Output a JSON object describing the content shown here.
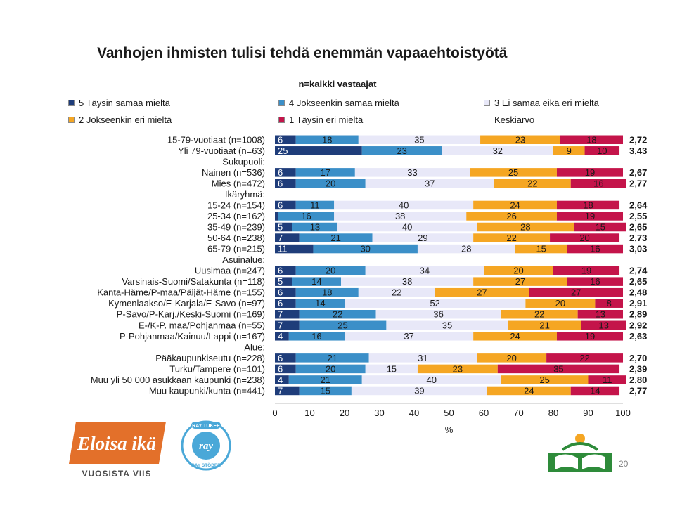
{
  "slide": {
    "title": "Vanhojen ihmisten tulisi tehdä enemmän vapaaehtoistyötä",
    "page_number": "20"
  },
  "logos": {
    "eloisa_line1": "Eloisa ikä",
    "eloisa_line2": "VUOSISTA VIIS",
    "ray_top": "RAY TUKEE",
    "ray_center": "ray",
    "ray_bottom": "RAY STÖDER"
  },
  "chart_data": {
    "type": "bar",
    "orientation": "horizontal",
    "stacked": true,
    "subtitle": "n=kaikki vastaajat",
    "xlabel": "%",
    "xlim": [
      0,
      100
    ],
    "xticks": [
      "0",
      "10",
      "20",
      "30",
      "40",
      "50",
      "60",
      "70",
      "80",
      "90",
      "100"
    ],
    "grid": false,
    "legend_position": "top",
    "mean_label": "Keskiarvo",
    "colors": {
      "s5": "#1f3d7a",
      "s4": "#3b8fc8",
      "s3": "#e8e8f8",
      "s2": "#f5a623",
      "s1": "#c4144a"
    },
    "legend": [
      {
        "key": "s5",
        "label": "5 Täysin samaa mieltä"
      },
      {
        "key": "s4",
        "label": "4 Jokseenkin samaa mieltä"
      },
      {
        "key": "s3",
        "label": "3 Ei samaa eikä eri mieltä"
      },
      {
        "key": "s2",
        "label": "2 Jokseenkin eri mieltä"
      },
      {
        "key": "s1",
        "label": "1 Täysin eri mieltä"
      }
    ],
    "rows": [
      {
        "label": "15-79-vuotiaat (n=1008)",
        "values": [
          6,
          18,
          35,
          23,
          18
        ],
        "mean": "2,72"
      },
      {
        "label": "Yli 79-vuotiaat (n=63)",
        "values": [
          25,
          23,
          32,
          9,
          10
        ],
        "mean": "3,43"
      },
      {
        "label": "Sukupuoli:",
        "heading": true
      },
      {
        "label": "Nainen (n=536)",
        "values": [
          6,
          17,
          33,
          25,
          19
        ],
        "mean": "2,67"
      },
      {
        "label": "Mies (n=472)",
        "values": [
          6,
          20,
          37,
          22,
          16
        ],
        "mean": "2,77"
      },
      {
        "label": "Ikäryhmä:",
        "heading": true
      },
      {
        "label": "15-24 (n=154)",
        "values": [
          6,
          11,
          40,
          24,
          18
        ],
        "mean": "2,64"
      },
      {
        "label": "25-34 (n=162)",
        "values": [
          1,
          16,
          38,
          26,
          19
        ],
        "mean": "2,55"
      },
      {
        "label": "35-49 (n=239)",
        "values": [
          5,
          13,
          40,
          28,
          15
        ],
        "mean": "2,65"
      },
      {
        "label": "50-64 (n=238)",
        "values": [
          7,
          21,
          29,
          22,
          20
        ],
        "mean": "2,73"
      },
      {
        "label": "65-79 (n=215)",
        "values": [
          11,
          30,
          28,
          15,
          16
        ],
        "mean": "3,03"
      },
      {
        "label": "Asuinalue:",
        "heading": true
      },
      {
        "label": "Uusimaa (n=247)",
        "values": [
          6,
          20,
          34,
          20,
          19
        ],
        "mean": "2,74"
      },
      {
        "label": "Varsinais-Suomi/Satakunta (n=118)",
        "values": [
          5,
          14,
          38,
          27,
          16
        ],
        "mean": "2,65"
      },
      {
        "label": "Kanta-Häme/P-maa/Päijät-Häme (n=155)",
        "values": [
          6,
          18,
          22,
          27,
          27
        ],
        "mean": "2,48"
      },
      {
        "label": "Kymenlaakso/E-Karjala/E-Savo (n=97)",
        "values": [
          6,
          14,
          52,
          20,
          8
        ],
        "mean": "2,91"
      },
      {
        "label": "P-Savo/P-Karj./Keski-Suomi (n=169)",
        "values": [
          7,
          22,
          36,
          22,
          13
        ],
        "mean": "2,89"
      },
      {
        "label": "E-/K-P. maa/Pohjanmaa (n=55)",
        "values": [
          7,
          25,
          35,
          21,
          13
        ],
        "mean": "2,92"
      },
      {
        "label": "P-Pohjanmaa/Kainuu/Lappi (n=167)",
        "values": [
          4,
          16,
          37,
          24,
          19
        ],
        "mean": "2,63"
      },
      {
        "label": "Alue:",
        "heading": true
      },
      {
        "label": "Pääkaupunkiseutu (n=228)",
        "values": [
          6,
          21,
          31,
          20,
          22
        ],
        "mean": "2,70"
      },
      {
        "label": "Turku/Tampere (n=101)",
        "values": [
          6,
          20,
          15,
          23,
          35
        ],
        "mean": "2,39"
      },
      {
        "label": "Muu yli 50 000 asukkaan kaupunki (n=238)",
        "values": [
          4,
          21,
          40,
          25,
          11
        ],
        "mean": "2,80"
      },
      {
        "label": "Muu kaupunki/kunta (n=441)",
        "values": [
          7,
          15,
          39,
          24,
          14
        ],
        "mean": "2,77"
      }
    ]
  }
}
